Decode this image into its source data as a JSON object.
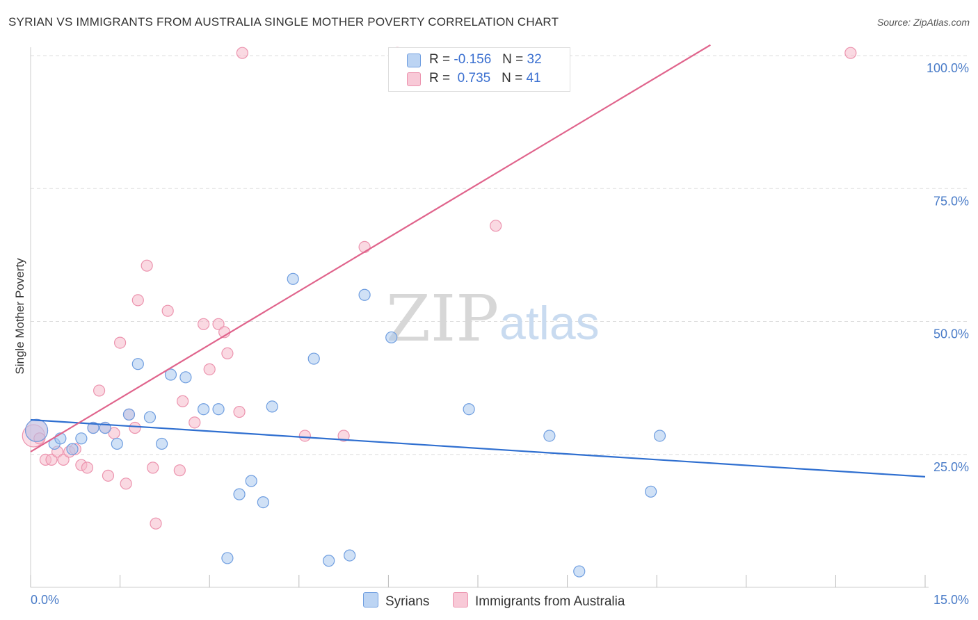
{
  "title": "SYRIAN VS IMMIGRANTS FROM AUSTRALIA SINGLE MOTHER POVERTY CORRELATION CHART",
  "source": "Source: ZipAtlas.com",
  "watermark": {
    "zip": "ZIP",
    "atlas": "atlas"
  },
  "legend": {
    "rows": [
      {
        "r_label": "R =",
        "r_value": "-0.156",
        "n_label": "N =",
        "n_value": "32"
      },
      {
        "r_label": "R =",
        "r_value": "0.735",
        "n_label": "N =",
        "n_value": "41"
      }
    ]
  },
  "bottom_legend": {
    "syrians": "Syrians",
    "australia": "Immigrants from Australia"
  },
  "colors": {
    "syrians_fill": "#a9c8ef",
    "syrians_stroke": "#6f9ee0",
    "syrians_line": "#2f6fd0",
    "australia_fill": "#f6b9cb",
    "australia_stroke": "#ec93ae",
    "australia_line": "#e0648c",
    "tick_text": "#4a7cc8",
    "grid": "#dddddd"
  },
  "chart_data": {
    "type": "scatter",
    "title": "SYRIAN VS IMMIGRANTS FROM AUSTRALIA SINGLE MOTHER POVERTY CORRELATION CHART",
    "xlabel": "",
    "ylabel": "Single Mother Poverty",
    "xlim": [
      0,
      15
    ],
    "ylim": [
      0,
      102
    ],
    "x_tick_labels": [
      "0.0%",
      "15.0%"
    ],
    "y_ticks": [
      25,
      50,
      75,
      100
    ],
    "y_tick_labels": [
      "25.0%",
      "50.0%",
      "75.0%",
      "100.0%"
    ],
    "grid": true,
    "legend_position": "top-center",
    "series": [
      {
        "name": "Syrians",
        "r": -0.156,
        "n": 32,
        "trend": {
          "x": [
            0,
            15
          ],
          "y": [
            31.5,
            20.8
          ]
        },
        "points": [
          [
            0.1,
            29.5
          ],
          [
            0.4,
            27
          ],
          [
            0.5,
            28
          ],
          [
            0.7,
            26
          ],
          [
            0.85,
            28
          ],
          [
            1.05,
            30
          ],
          [
            1.25,
            30
          ],
          [
            1.45,
            27
          ],
          [
            1.65,
            32.5
          ],
          [
            1.8,
            42
          ],
          [
            2.0,
            32
          ],
          [
            2.2,
            27
          ],
          [
            2.35,
            40
          ],
          [
            2.6,
            39.5
          ],
          [
            2.9,
            33.5
          ],
          [
            3.15,
            33.5
          ],
          [
            3.3,
            5.5
          ],
          [
            3.5,
            17.5
          ],
          [
            3.7,
            20
          ],
          [
            3.9,
            16
          ],
          [
            4.05,
            34
          ],
          [
            4.4,
            58
          ],
          [
            4.75,
            43
          ],
          [
            5.0,
            5
          ],
          [
            5.35,
            6
          ],
          [
            5.6,
            55
          ],
          [
            6.05,
            47
          ],
          [
            7.35,
            33.5
          ],
          [
            8.7,
            28.5
          ],
          [
            9.2,
            3
          ],
          [
            10.4,
            18
          ],
          [
            10.55,
            28.5
          ]
        ]
      },
      {
        "name": "Immigrants from Australia",
        "r": 0.735,
        "n": 41,
        "trend": {
          "x": [
            0,
            11.4
          ],
          "y": [
            25.5,
            102
          ]
        },
        "points": [
          [
            0.05,
            28.5
          ],
          [
            0.1,
            29.5
          ],
          [
            0.15,
            28
          ],
          [
            0.25,
            24
          ],
          [
            0.35,
            24
          ],
          [
            0.45,
            25.5
          ],
          [
            0.55,
            24
          ],
          [
            0.65,
            25.5
          ],
          [
            0.75,
            26
          ],
          [
            0.85,
            23
          ],
          [
            0.95,
            22.5
          ],
          [
            1.05,
            30
          ],
          [
            1.15,
            37
          ],
          [
            1.25,
            30
          ],
          [
            1.3,
            21
          ],
          [
            1.4,
            29
          ],
          [
            1.5,
            46
          ],
          [
            1.6,
            19.5
          ],
          [
            1.65,
            32.5
          ],
          [
            1.75,
            30
          ],
          [
            1.8,
            54
          ],
          [
            1.95,
            60.5
          ],
          [
            2.05,
            22.5
          ],
          [
            2.1,
            12
          ],
          [
            2.3,
            52
          ],
          [
            2.5,
            22
          ],
          [
            2.55,
            35
          ],
          [
            2.75,
            31
          ],
          [
            2.9,
            49.5
          ],
          [
            3.0,
            41
          ],
          [
            3.15,
            49.5
          ],
          [
            3.25,
            48
          ],
          [
            3.3,
            44
          ],
          [
            3.5,
            33
          ],
          [
            3.55,
            100.5
          ],
          [
            4.6,
            28.5
          ],
          [
            5.25,
            28.5
          ],
          [
            5.6,
            64
          ],
          [
            6.15,
            100.5
          ],
          [
            7.8,
            68
          ],
          [
            13.75,
            100.5
          ]
        ]
      }
    ]
  }
}
